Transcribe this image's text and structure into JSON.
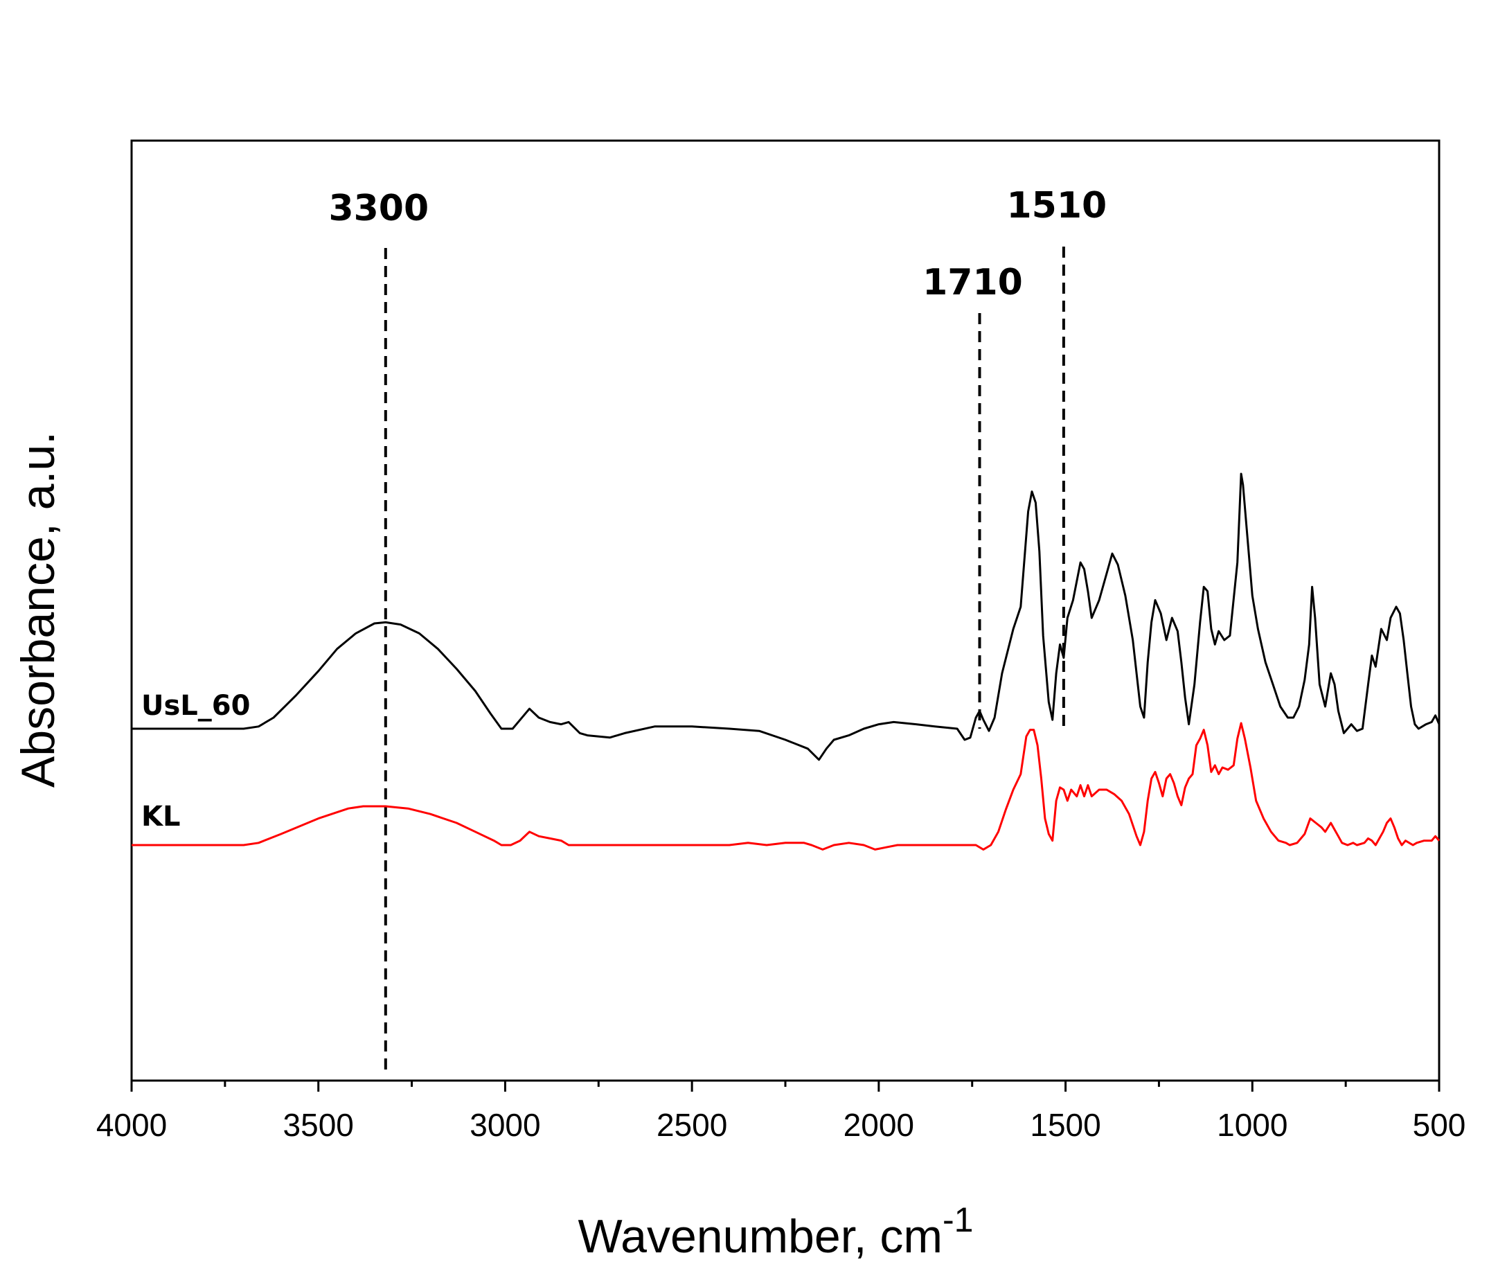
{
  "chart_data": {
    "type": "line",
    "xlabel": "Wavenumber, cm",
    "xlabel_superscript": "-1",
    "ylabel": "Absorbance, a.u.",
    "xlim": [
      4000,
      500
    ],
    "x_reversed": true,
    "y_ticks_shown": false,
    "grid": false,
    "x_ticks": [
      "4000",
      "3500",
      "3000",
      "2500",
      "2000",
      "1500",
      "1000",
      "500"
    ],
    "annotations": [
      {
        "label": "3300",
        "x": 3320
      },
      {
        "label": "1710",
        "x": 1730
      },
      {
        "label": "1510",
        "x": 1505
      }
    ],
    "series": [
      {
        "name": "UsL_60",
        "color": "#000000",
        "points": [
          [
            4000,
            0.0
          ],
          [
            3850,
            0.0
          ],
          [
            3700,
            0.0
          ],
          [
            3660,
            0.01
          ],
          [
            3620,
            0.05
          ],
          [
            3560,
            0.15
          ],
          [
            3500,
            0.26
          ],
          [
            3450,
            0.36
          ],
          [
            3400,
            0.43
          ],
          [
            3350,
            0.475
          ],
          [
            3320,
            0.48
          ],
          [
            3280,
            0.47
          ],
          [
            3230,
            0.43
          ],
          [
            3180,
            0.36
          ],
          [
            3130,
            0.27
          ],
          [
            3080,
            0.17
          ],
          [
            3040,
            0.07
          ],
          [
            3010,
            0.0
          ],
          [
            2980,
            0.0
          ],
          [
            2960,
            0.04
          ],
          [
            2935,
            0.09
          ],
          [
            2910,
            0.05
          ],
          [
            2880,
            0.03
          ],
          [
            2850,
            0.02
          ],
          [
            2830,
            0.03
          ],
          [
            2800,
            -0.02
          ],
          [
            2780,
            -0.03
          ],
          [
            2720,
            -0.04
          ],
          [
            2680,
            -0.02
          ],
          [
            2600,
            0.01
          ],
          [
            2500,
            0.01
          ],
          [
            2400,
            0.0
          ],
          [
            2320,
            -0.01
          ],
          [
            2250,
            -0.05
          ],
          [
            2190,
            -0.09
          ],
          [
            2160,
            -0.14
          ],
          [
            2140,
            -0.09
          ],
          [
            2120,
            -0.05
          ],
          [
            2080,
            -0.03
          ],
          [
            2040,
            0.0
          ],
          [
            2000,
            0.02
          ],
          [
            1960,
            0.03
          ],
          [
            1900,
            0.02
          ],
          [
            1850,
            0.01
          ],
          [
            1790,
            0.0
          ],
          [
            1770,
            -0.05
          ],
          [
            1755,
            -0.04
          ],
          [
            1740,
            0.05
          ],
          [
            1730,
            0.08
          ],
          [
            1720,
            0.04
          ],
          [
            1705,
            -0.01
          ],
          [
            1690,
            0.05
          ],
          [
            1670,
            0.25
          ],
          [
            1640,
            0.45
          ],
          [
            1620,
            0.55
          ],
          [
            1600,
            0.98
          ],
          [
            1590,
            1.07
          ],
          [
            1580,
            1.02
          ],
          [
            1570,
            0.8
          ],
          [
            1560,
            0.42
          ],
          [
            1545,
            0.12
          ],
          [
            1535,
            0.04
          ],
          [
            1525,
            0.25
          ],
          [
            1515,
            0.38
          ],
          [
            1505,
            0.32
          ],
          [
            1495,
            0.5
          ],
          [
            1480,
            0.58
          ],
          [
            1460,
            0.75
          ],
          [
            1450,
            0.72
          ],
          [
            1440,
            0.62
          ],
          [
            1430,
            0.5
          ],
          [
            1410,
            0.58
          ],
          [
            1390,
            0.7
          ],
          [
            1375,
            0.79
          ],
          [
            1360,
            0.74
          ],
          [
            1340,
            0.6
          ],
          [
            1320,
            0.4
          ],
          [
            1300,
            0.1
          ],
          [
            1290,
            0.05
          ],
          [
            1280,
            0.3
          ],
          [
            1270,
            0.48
          ],
          [
            1260,
            0.58
          ],
          [
            1245,
            0.52
          ],
          [
            1230,
            0.4
          ],
          [
            1215,
            0.5
          ],
          [
            1200,
            0.44
          ],
          [
            1190,
            0.3
          ],
          [
            1180,
            0.14
          ],
          [
            1170,
            0.02
          ],
          [
            1155,
            0.2
          ],
          [
            1140,
            0.48
          ],
          [
            1130,
            0.64
          ],
          [
            1120,
            0.62
          ],
          [
            1110,
            0.45
          ],
          [
            1100,
            0.38
          ],
          [
            1090,
            0.44
          ],
          [
            1075,
            0.4
          ],
          [
            1060,
            0.42
          ],
          [
            1040,
            0.75
          ],
          [
            1030,
            1.15
          ],
          [
            1025,
            1.1
          ],
          [
            1015,
            0.9
          ],
          [
            1000,
            0.6
          ],
          [
            985,
            0.45
          ],
          [
            965,
            0.3
          ],
          [
            945,
            0.2
          ],
          [
            925,
            0.1
          ],
          [
            905,
            0.05
          ],
          [
            890,
            0.05
          ],
          [
            875,
            0.1
          ],
          [
            860,
            0.22
          ],
          [
            848,
            0.38
          ],
          [
            840,
            0.64
          ],
          [
            832,
            0.5
          ],
          [
            820,
            0.2
          ],
          [
            805,
            0.1
          ],
          [
            790,
            0.25
          ],
          [
            780,
            0.2
          ],
          [
            770,
            0.08
          ],
          [
            755,
            -0.02
          ],
          [
            735,
            0.02
          ],
          [
            720,
            -0.01
          ],
          [
            705,
            0.0
          ],
          [
            690,
            0.2
          ],
          [
            680,
            0.33
          ],
          [
            670,
            0.28
          ],
          [
            655,
            0.45
          ],
          [
            640,
            0.4
          ],
          [
            630,
            0.5
          ],
          [
            615,
            0.55
          ],
          [
            605,
            0.52
          ],
          [
            595,
            0.4
          ],
          [
            585,
            0.25
          ],
          [
            575,
            0.1
          ],
          [
            565,
            0.02
          ],
          [
            555,
            0.0
          ],
          [
            535,
            0.02
          ],
          [
            520,
            0.03
          ],
          [
            510,
            0.06
          ],
          [
            500,
            0.02
          ]
        ]
      },
      {
        "name": "KL",
        "color": "#ff0000",
        "points": [
          [
            4000,
            0.0
          ],
          [
            3850,
            0.0
          ],
          [
            3700,
            0.0
          ],
          [
            3660,
            0.01
          ],
          [
            3600,
            0.05
          ],
          [
            3500,
            0.12
          ],
          [
            3420,
            0.165
          ],
          [
            3380,
            0.175
          ],
          [
            3320,
            0.175
          ],
          [
            3260,
            0.165
          ],
          [
            3200,
            0.14
          ],
          [
            3130,
            0.1
          ],
          [
            3080,
            0.06
          ],
          [
            3030,
            0.02
          ],
          [
            3010,
            0.0
          ],
          [
            2985,
            0.0
          ],
          [
            2960,
            0.02
          ],
          [
            2935,
            0.06
          ],
          [
            2910,
            0.04
          ],
          [
            2880,
            0.03
          ],
          [
            2850,
            0.02
          ],
          [
            2830,
            0.0
          ],
          [
            2790,
            0.0
          ],
          [
            2700,
            0.0
          ],
          [
            2600,
            0.0
          ],
          [
            2500,
            0.0
          ],
          [
            2400,
            0.0
          ],
          [
            2350,
            0.01
          ],
          [
            2300,
            0.0
          ],
          [
            2250,
            0.01
          ],
          [
            2200,
            0.01
          ],
          [
            2180,
            0.0
          ],
          [
            2150,
            -0.02
          ],
          [
            2120,
            0.0
          ],
          [
            2080,
            0.01
          ],
          [
            2040,
            0.0
          ],
          [
            2010,
            -0.02
          ],
          [
            1980,
            -0.01
          ],
          [
            1950,
            0.0
          ],
          [
            1900,
            0.0
          ],
          [
            1800,
            0.0
          ],
          [
            1760,
            0.0
          ],
          [
            1740,
            0.0
          ],
          [
            1720,
            -0.02
          ],
          [
            1700,
            0.0
          ],
          [
            1680,
            0.06
          ],
          [
            1660,
            0.16
          ],
          [
            1640,
            0.25
          ],
          [
            1620,
            0.32
          ],
          [
            1605,
            0.49
          ],
          [
            1595,
            0.52
          ],
          [
            1585,
            0.52
          ],
          [
            1575,
            0.45
          ],
          [
            1565,
            0.3
          ],
          [
            1555,
            0.12
          ],
          [
            1545,
            0.05
          ],
          [
            1535,
            0.02
          ],
          [
            1525,
            0.2
          ],
          [
            1515,
            0.26
          ],
          [
            1505,
            0.25
          ],
          [
            1495,
            0.2
          ],
          [
            1485,
            0.25
          ],
          [
            1470,
            0.22
          ],
          [
            1460,
            0.27
          ],
          [
            1450,
            0.22
          ],
          [
            1440,
            0.27
          ],
          [
            1430,
            0.22
          ],
          [
            1410,
            0.25
          ],
          [
            1390,
            0.25
          ],
          [
            1370,
            0.23
          ],
          [
            1350,
            0.2
          ],
          [
            1330,
            0.14
          ],
          [
            1310,
            0.04
          ],
          [
            1300,
            0.0
          ],
          [
            1290,
            0.06
          ],
          [
            1280,
            0.2
          ],
          [
            1270,
            0.3
          ],
          [
            1260,
            0.33
          ],
          [
            1250,
            0.28
          ],
          [
            1240,
            0.22
          ],
          [
            1230,
            0.3
          ],
          [
            1220,
            0.32
          ],
          [
            1210,
            0.28
          ],
          [
            1200,
            0.22
          ],
          [
            1190,
            0.18
          ],
          [
            1180,
            0.26
          ],
          [
            1170,
            0.3
          ],
          [
            1160,
            0.32
          ],
          [
            1150,
            0.45
          ],
          [
            1140,
            0.48
          ],
          [
            1130,
            0.52
          ],
          [
            1120,
            0.45
          ],
          [
            1110,
            0.33
          ],
          [
            1100,
            0.36
          ],
          [
            1090,
            0.32
          ],
          [
            1080,
            0.35
          ],
          [
            1065,
            0.34
          ],
          [
            1050,
            0.36
          ],
          [
            1040,
            0.48
          ],
          [
            1030,
            0.55
          ],
          [
            1020,
            0.48
          ],
          [
            1005,
            0.35
          ],
          [
            990,
            0.2
          ],
          [
            970,
            0.12
          ],
          [
            950,
            0.06
          ],
          [
            930,
            0.02
          ],
          [
            910,
            0.01
          ],
          [
            900,
            0.0
          ],
          [
            880,
            0.01
          ],
          [
            860,
            0.05
          ],
          [
            845,
            0.12
          ],
          [
            830,
            0.1
          ],
          [
            815,
            0.08
          ],
          [
            805,
            0.06
          ],
          [
            790,
            0.1
          ],
          [
            780,
            0.07
          ],
          [
            770,
            0.04
          ],
          [
            760,
            0.01
          ],
          [
            745,
            0.0
          ],
          [
            730,
            0.01
          ],
          [
            720,
            0.0
          ],
          [
            700,
            0.01
          ],
          [
            690,
            0.03
          ],
          [
            680,
            0.02
          ],
          [
            670,
            0.0
          ],
          [
            660,
            0.03
          ],
          [
            650,
            0.06
          ],
          [
            640,
            0.1
          ],
          [
            630,
            0.12
          ],
          [
            620,
            0.08
          ],
          [
            610,
            0.03
          ],
          [
            600,
            0.0
          ],
          [
            590,
            0.02
          ],
          [
            570,
            0.0
          ],
          [
            560,
            0.01
          ],
          [
            540,
            0.02
          ],
          [
            520,
            0.02
          ],
          [
            510,
            0.04
          ],
          [
            500,
            0.02
          ]
        ]
      }
    ]
  }
}
